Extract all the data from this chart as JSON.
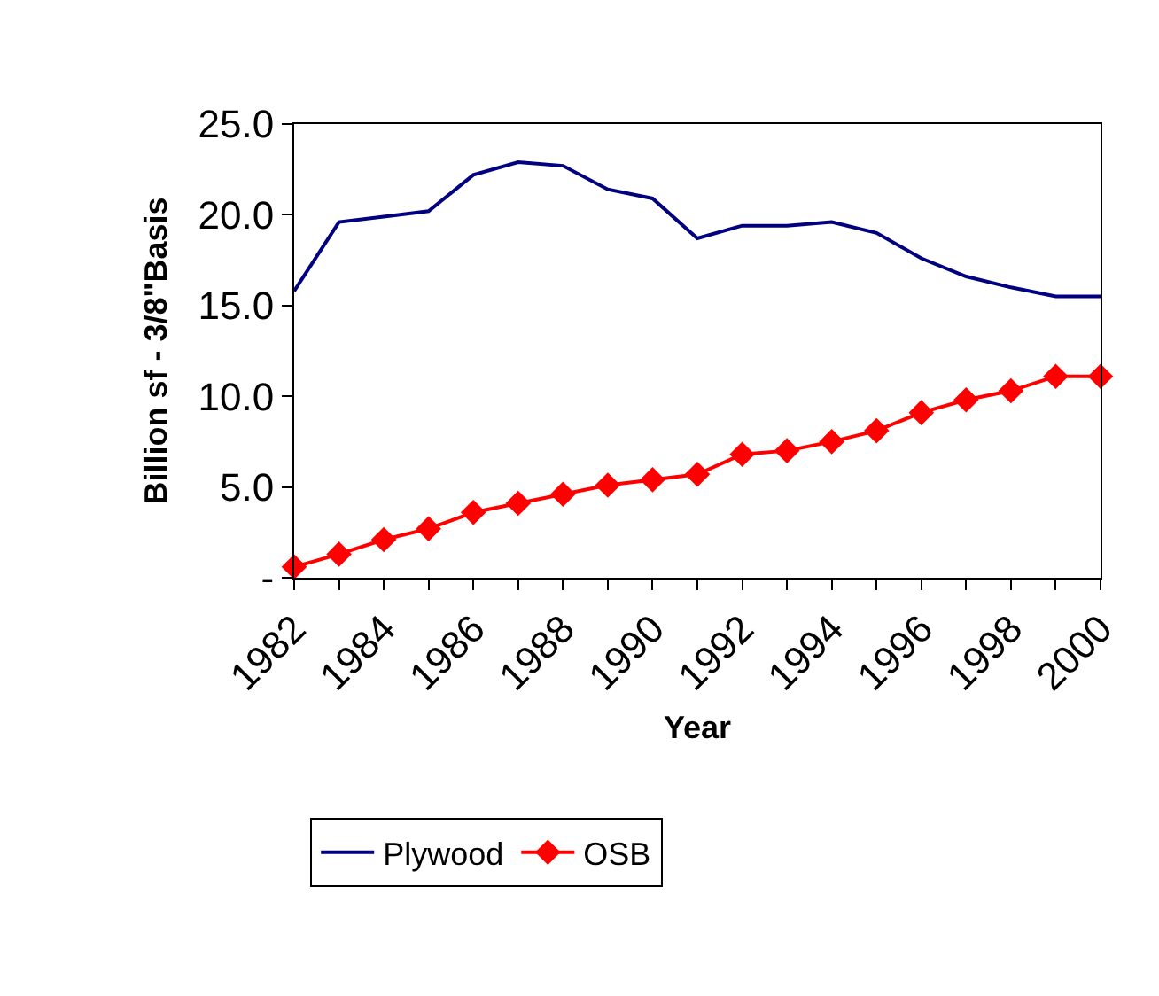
{
  "chart_data": {
    "type": "line",
    "xlabel": "Year",
    "ylabel": "Billion sf - 3/8\"Basis",
    "x": [
      1982,
      1983,
      1984,
      1985,
      1986,
      1987,
      1988,
      1989,
      1990,
      1991,
      1992,
      1993,
      1994,
      1995,
      1996,
      1997,
      1998,
      1999,
      2000
    ],
    "series": [
      {
        "name": "Plywood",
        "color": "#000080",
        "marker": "none",
        "values": [
          15.8,
          19.6,
          19.9,
          20.2,
          22.2,
          22.9,
          22.7,
          21.4,
          20.9,
          18.7,
          19.4,
          19.4,
          19.6,
          19.0,
          17.6,
          16.6,
          16.0,
          15.5,
          15.5
        ]
      },
      {
        "name": "OSB",
        "color": "#ff0000",
        "marker": "diamond",
        "values": [
          0.6,
          1.3,
          2.1,
          2.7,
          3.6,
          4.1,
          4.6,
          5.1,
          5.4,
          5.7,
          6.8,
          7.0,
          7.5,
          8.1,
          9.1,
          9.8,
          10.3,
          11.1,
          11.1
        ]
      }
    ],
    "xlim": [
      1982,
      2000
    ],
    "xticks": [
      1982,
      {
        "value": 1983,
        "label": null
      },
      1984,
      {
        "value": 1985,
        "label": null
      },
      1986,
      {
        "value": 1987,
        "label": null
      },
      1988,
      {
        "value": 1989,
        "label": null
      },
      1990,
      {
        "value": 1991,
        "label": null
      },
      1992,
      {
        "value": 1993,
        "label": null
      },
      1994,
      {
        "value": 1995,
        "label": null
      },
      1996,
      {
        "value": 1997,
        "label": null
      },
      1998,
      {
        "value": 1999,
        "label": null
      },
      2000
    ],
    "ylim": [
      0,
      25
    ],
    "yticks": [
      {
        "value": 0,
        "label": "-"
      },
      {
        "value": 5,
        "label": "5.0"
      },
      {
        "value": 10,
        "label": "10.0"
      },
      {
        "value": 15,
        "label": "15.0"
      },
      {
        "value": 20,
        "label": "20.0"
      },
      {
        "value": 25,
        "label": "25.0"
      }
    ],
    "legend": "bottom",
    "line_style": "solid"
  }
}
